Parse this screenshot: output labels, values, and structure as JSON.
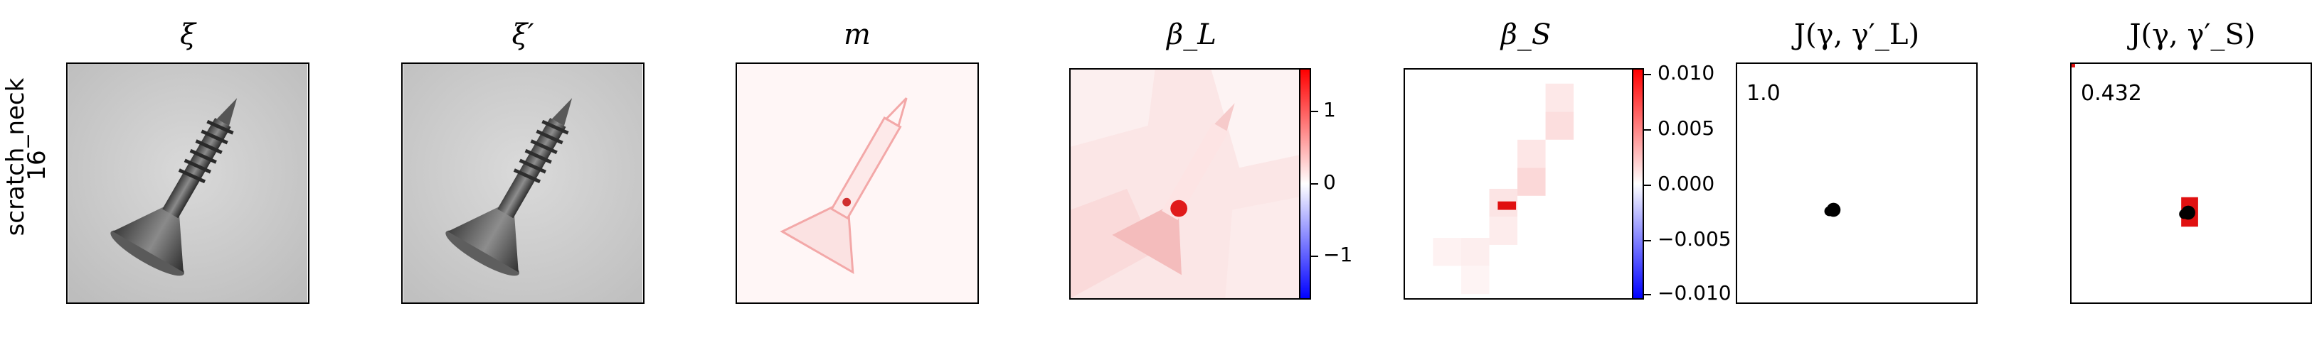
{
  "row": {
    "name": "scratch_neck",
    "index": "16"
  },
  "titles": {
    "xi": "ξ",
    "xi_prime": "ξ′",
    "m": "m",
    "beta_l": "β_L",
    "beta_s": "β_S",
    "j_l": "J(γ, γ′_L)",
    "j_s": "J(γ, γ′_S)"
  },
  "scores": {
    "j_l": "1.0",
    "j_s": "0.432"
  },
  "colorbar_l": {
    "ticks": [
      "1",
      "0",
      "−1"
    ],
    "colors": {
      "pos": "#ff0000",
      "zero": "#ffffff",
      "neg": "#0000ff"
    }
  },
  "colorbar_s": {
    "ticks": [
      "0.010",
      "0.005",
      "0.000",
      "−0.005",
      "−0.010"
    ]
  }
}
